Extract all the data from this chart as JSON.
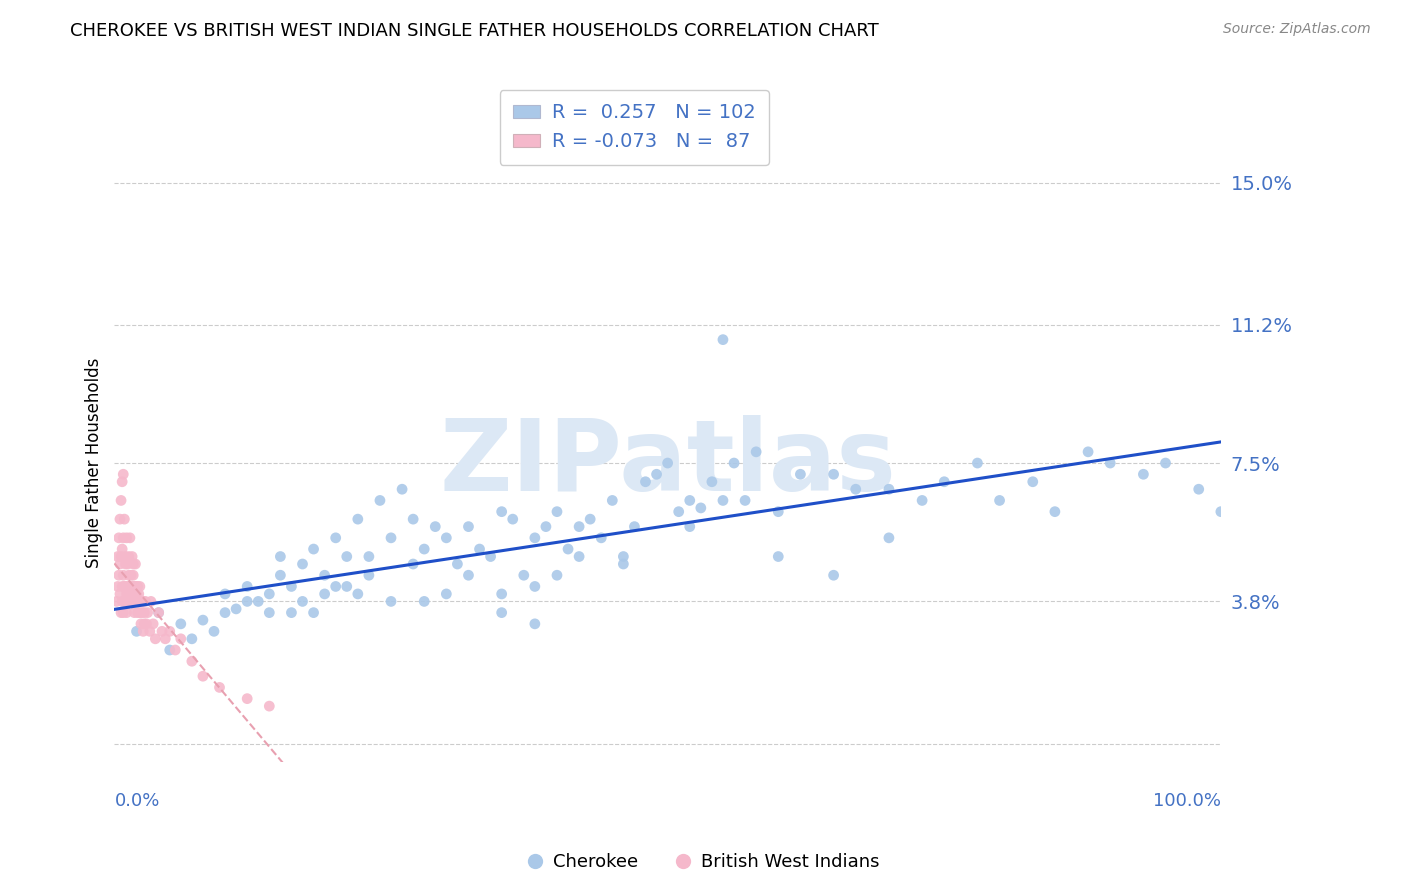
{
  "title": "CHEROKEE VS BRITISH WEST INDIAN SINGLE FATHER HOUSEHOLDS CORRELATION CHART",
  "source": "Source: ZipAtlas.com",
  "ylabel": "Single Father Households",
  "xlim": [
    0.0,
    1.0
  ],
  "ylim": [
    -0.005,
    0.155
  ],
  "yticks": [
    0.0,
    0.038,
    0.075,
    0.112,
    0.15
  ],
  "ytick_labels": [
    "",
    "3.8%",
    "7.5%",
    "11.2%",
    "15.0%"
  ],
  "xtick_vals": [
    0.0,
    1.0
  ],
  "xtick_labels": [
    "0.0%",
    "100.0%"
  ],
  "title_fontsize": 13,
  "axis_label_color": "#4472C4",
  "background_color": "#ffffff",
  "legend_R1": " 0.257",
  "legend_N1": "102",
  "legend_R2": "-0.073",
  "legend_N2": " 87",
  "cherokee_color": "#aac8e8",
  "bwi_color": "#f5b8cb",
  "cherokee_line_color": "#1f4fc8",
  "bwi_line_color": "#e8a0b0",
  "grid_color": "#cccccc",
  "watermark_text": "ZIPatlas",
  "watermark_color": "#dce8f5",
  "cherokee_x": [
    0.02,
    0.04,
    0.05,
    0.06,
    0.07,
    0.08,
    0.09,
    0.1,
    0.1,
    0.11,
    0.12,
    0.12,
    0.13,
    0.14,
    0.14,
    0.15,
    0.15,
    0.16,
    0.16,
    0.17,
    0.17,
    0.18,
    0.18,
    0.19,
    0.19,
    0.2,
    0.2,
    0.21,
    0.21,
    0.22,
    0.22,
    0.23,
    0.23,
    0.24,
    0.25,
    0.25,
    0.26,
    0.27,
    0.27,
    0.28,
    0.28,
    0.29,
    0.3,
    0.3,
    0.31,
    0.32,
    0.32,
    0.33,
    0.34,
    0.35,
    0.35,
    0.36,
    0.37,
    0.38,
    0.38,
    0.39,
    0.4,
    0.4,
    0.41,
    0.42,
    0.43,
    0.44,
    0.45,
    0.46,
    0.47,
    0.48,
    0.49,
    0.5,
    0.51,
    0.52,
    0.53,
    0.54,
    0.55,
    0.56,
    0.57,
    0.58,
    0.6,
    0.62,
    0.65,
    0.67,
    0.7,
    0.73,
    0.75,
    0.78,
    0.8,
    0.83,
    0.85,
    0.88,
    0.9,
    0.93,
    0.95,
    0.98,
    1.0,
    0.35,
    0.38,
    0.42,
    0.46,
    0.52,
    0.55,
    0.6,
    0.65,
    0.7
  ],
  "cherokee_y": [
    0.03,
    0.035,
    0.025,
    0.032,
    0.028,
    0.033,
    0.03,
    0.035,
    0.04,
    0.036,
    0.042,
    0.038,
    0.038,
    0.04,
    0.035,
    0.05,
    0.045,
    0.042,
    0.035,
    0.048,
    0.038,
    0.052,
    0.035,
    0.04,
    0.045,
    0.055,
    0.042,
    0.042,
    0.05,
    0.06,
    0.04,
    0.05,
    0.045,
    0.065,
    0.055,
    0.038,
    0.068,
    0.048,
    0.06,
    0.052,
    0.038,
    0.058,
    0.055,
    0.04,
    0.048,
    0.058,
    0.045,
    0.052,
    0.05,
    0.062,
    0.035,
    0.06,
    0.045,
    0.055,
    0.042,
    0.058,
    0.062,
    0.045,
    0.052,
    0.05,
    0.06,
    0.055,
    0.065,
    0.05,
    0.058,
    0.07,
    0.072,
    0.075,
    0.062,
    0.065,
    0.063,
    0.07,
    0.108,
    0.075,
    0.065,
    0.078,
    0.062,
    0.072,
    0.072,
    0.068,
    0.068,
    0.065,
    0.07,
    0.075,
    0.065,
    0.07,
    0.062,
    0.078,
    0.075,
    0.072,
    0.075,
    0.068,
    0.062,
    0.04,
    0.032,
    0.058,
    0.048,
    0.058,
    0.065,
    0.05,
    0.045,
    0.055
  ],
  "bwi_x": [
    0.002,
    0.003,
    0.003,
    0.004,
    0.004,
    0.005,
    0.005,
    0.005,
    0.006,
    0.006,
    0.006,
    0.007,
    0.007,
    0.007,
    0.007,
    0.008,
    0.008,
    0.008,
    0.008,
    0.009,
    0.009,
    0.009,
    0.01,
    0.01,
    0.01,
    0.011,
    0.011,
    0.011,
    0.012,
    0.012,
    0.012,
    0.013,
    0.013,
    0.013,
    0.014,
    0.014,
    0.014,
    0.015,
    0.015,
    0.015,
    0.016,
    0.016,
    0.016,
    0.017,
    0.017,
    0.017,
    0.018,
    0.018,
    0.018,
    0.019,
    0.019,
    0.019,
    0.02,
    0.02,
    0.02,
    0.021,
    0.021,
    0.022,
    0.022,
    0.023,
    0.023,
    0.024,
    0.024,
    0.025,
    0.025,
    0.026,
    0.026,
    0.027,
    0.027,
    0.028,
    0.029,
    0.03,
    0.032,
    0.033,
    0.035,
    0.037,
    0.04,
    0.043,
    0.046,
    0.05,
    0.055,
    0.06,
    0.07,
    0.08,
    0.095,
    0.12,
    0.14
  ],
  "bwi_y": [
    0.038,
    0.042,
    0.05,
    0.045,
    0.055,
    0.04,
    0.048,
    0.06,
    0.035,
    0.05,
    0.065,
    0.042,
    0.052,
    0.07,
    0.038,
    0.045,
    0.055,
    0.072,
    0.035,
    0.042,
    0.06,
    0.038,
    0.048,
    0.05,
    0.042,
    0.055,
    0.035,
    0.04,
    0.042,
    0.048,
    0.038,
    0.05,
    0.045,
    0.038,
    0.042,
    0.04,
    0.055,
    0.045,
    0.038,
    0.042,
    0.05,
    0.04,
    0.038,
    0.045,
    0.042,
    0.048,
    0.04,
    0.035,
    0.042,
    0.048,
    0.038,
    0.04,
    0.042,
    0.038,
    0.04,
    0.035,
    0.042,
    0.038,
    0.04,
    0.035,
    0.042,
    0.038,
    0.032,
    0.038,
    0.035,
    0.03,
    0.038,
    0.032,
    0.035,
    0.038,
    0.032,
    0.035,
    0.03,
    0.038,
    0.032,
    0.028,
    0.035,
    0.03,
    0.028,
    0.03,
    0.025,
    0.028,
    0.022,
    0.018,
    0.015,
    0.012,
    0.01
  ]
}
